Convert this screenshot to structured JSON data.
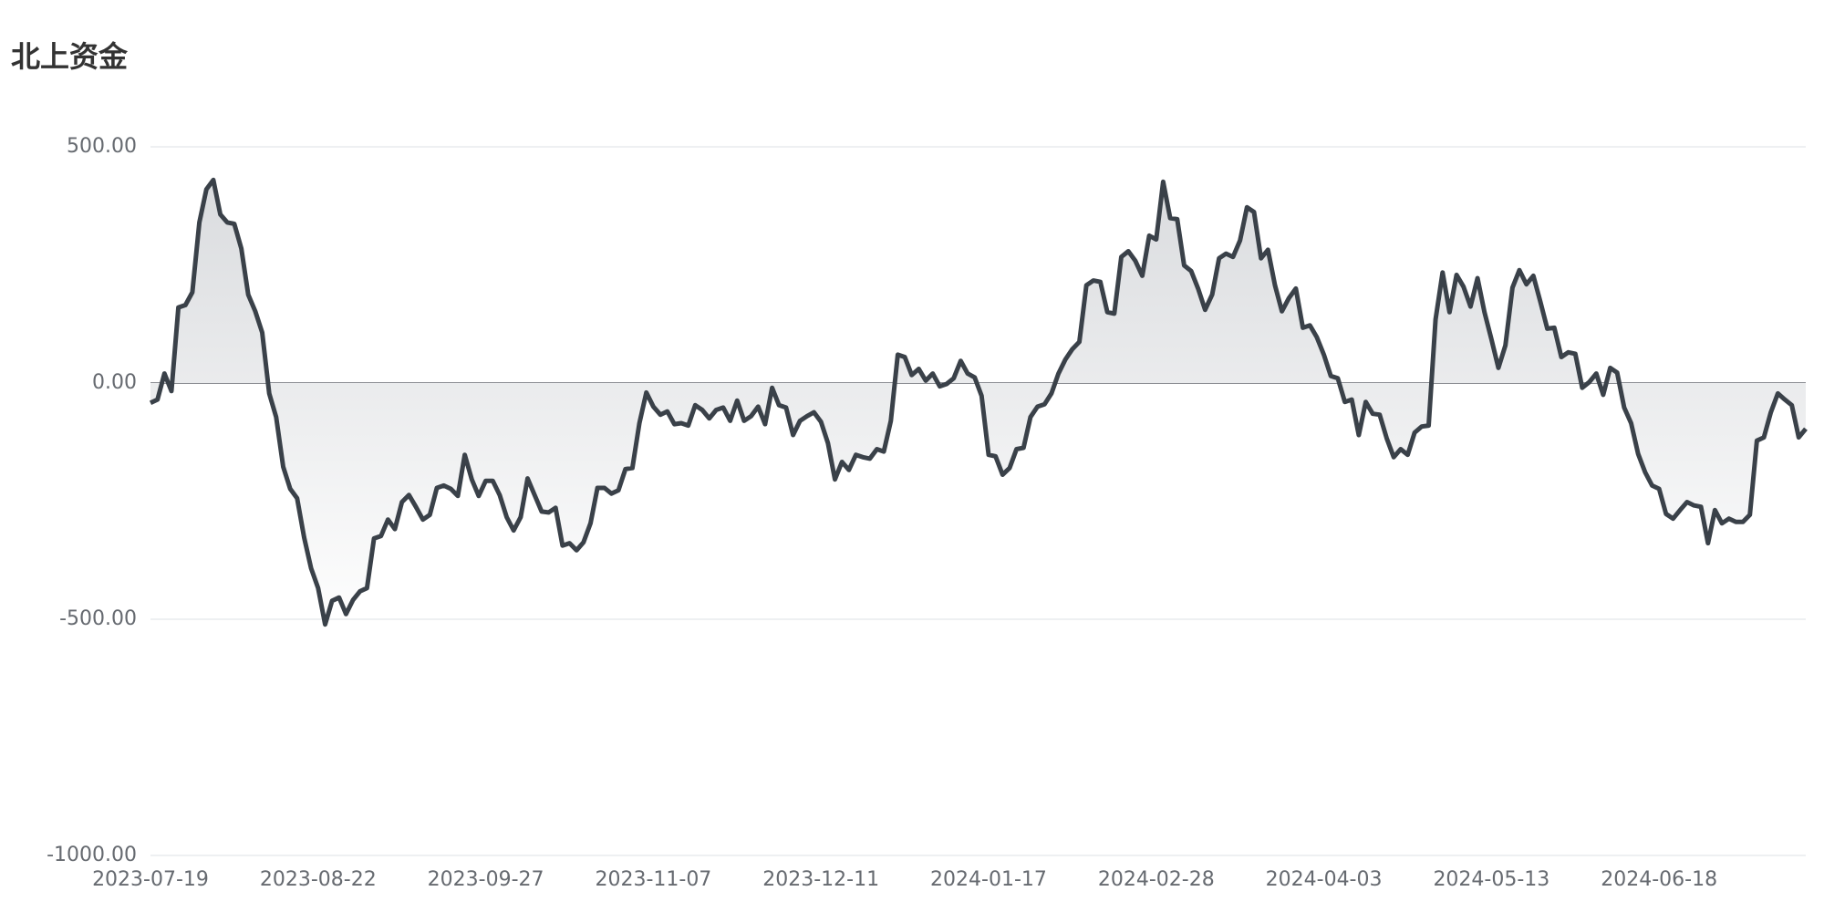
{
  "chart_data": {
    "type": "line",
    "title": "北上资金",
    "categories": [
      "2023-07-19",
      null,
      null,
      null,
      null,
      null,
      null,
      null,
      null,
      null,
      null,
      null,
      null,
      null,
      null,
      null,
      null,
      null,
      null,
      null,
      null,
      null,
      null,
      null,
      "2023-08-22",
      null,
      null,
      null,
      null,
      null,
      null,
      null,
      null,
      null,
      null,
      null,
      null,
      null,
      null,
      null,
      null,
      null,
      null,
      null,
      null,
      null,
      null,
      null,
      "2023-09-27",
      null,
      null,
      null,
      null,
      null,
      null,
      null,
      null,
      null,
      null,
      null,
      null,
      null,
      null,
      null,
      null,
      null,
      null,
      null,
      null,
      null,
      null,
      null,
      "2023-11-07",
      null,
      null,
      null,
      null,
      null,
      null,
      null,
      null,
      null,
      null,
      null,
      null,
      null,
      null,
      null,
      null,
      null,
      null,
      null,
      null,
      null,
      null,
      null,
      "2023-12-11",
      null,
      null,
      null,
      null,
      null,
      null,
      null,
      null,
      null,
      null,
      null,
      null,
      null,
      null,
      null,
      null,
      null,
      null,
      null,
      null,
      null,
      null,
      null,
      "2024-01-17",
      null,
      null,
      null,
      null,
      null,
      null,
      null,
      null,
      null,
      null,
      null,
      null,
      null,
      null,
      null,
      null,
      null,
      null,
      null,
      null,
      null,
      null,
      null,
      "2024-02-28",
      null,
      null,
      null,
      null,
      null,
      null,
      null,
      null,
      null,
      null,
      null,
      null,
      null,
      null,
      null,
      null,
      null,
      null,
      null,
      null,
      null,
      null,
      null,
      "2024-04-03",
      null,
      null,
      null,
      null,
      null,
      null,
      null,
      null,
      null,
      null,
      null,
      null,
      null,
      null,
      null,
      null,
      null,
      null,
      null,
      null,
      null,
      null,
      null,
      "2024-05-13",
      null,
      null,
      null,
      null,
      null,
      null,
      null,
      null,
      null,
      null,
      null,
      null,
      null,
      null,
      null,
      null,
      null,
      null,
      null,
      null,
      null,
      null,
      null,
      "2024-06-18",
      null,
      null,
      null,
      null,
      null,
      null,
      null,
      null,
      null,
      null,
      null,
      null,
      null,
      null,
      null,
      null,
      null,
      null,
      null,
      null,
      null
    ],
    "values": [
      -42,
      -35,
      20,
      -17,
      160,
      165,
      192,
      340,
      410,
      430,
      357,
      340,
      337,
      285,
      187,
      152,
      107,
      -22,
      -72,
      -177,
      -224,
      -244,
      -327,
      -392,
      -434,
      -511,
      -461,
      -454,
      -489,
      -459,
      -441,
      -434,
      -329,
      -324,
      -289,
      -309,
      -252,
      -237,
      -262,
      -289,
      -279,
      -222,
      -217,
      -224,
      -239,
      -152,
      -204,
      -239,
      -207,
      -207,
      -237,
      -284,
      -312,
      -284,
      -202,
      -237,
      -272,
      -274,
      -264,
      -344,
      -339,
      -354,
      -337,
      -297,
      -222,
      -222,
      -234,
      -227,
      -182,
      -180,
      -85,
      -20,
      -50,
      -67,
      -60,
      -87,
      -85,
      -90,
      -47,
      -57,
      -75,
      -57,
      -52,
      -80,
      -37,
      -80,
      -70,
      -50,
      -87,
      -10,
      -47,
      -52,
      -110,
      -80,
      -70,
      -62,
      -82,
      -127,
      -204,
      -167,
      -184,
      -152,
      -157,
      -160,
      -140,
      -145,
      -80,
      60,
      55,
      17,
      30,
      5,
      20,
      -7,
      -2,
      10,
      47,
      20,
      12,
      -27,
      -152,
      -155,
      -194,
      -180,
      -140,
      -137,
      -72,
      -50,
      -45,
      -22,
      20,
      50,
      72,
      87,
      207,
      217,
      214,
      150,
      147,
      267,
      279,
      259,
      227,
      312,
      304,
      426,
      349,
      347,
      249,
      237,
      200,
      155,
      187,
      264,
      274,
      267,
      302,
      372,
      362,
      264,
      282,
      207,
      152,
      180,
      200,
      117,
      122,
      97,
      60,
      15,
      10,
      -40,
      -35,
      -110,
      -40,
      -65,
      -67,
      -117,
      -157,
      -140,
      -152,
      -105,
      -92,
      -90,
      135,
      234,
      150,
      229,
      204,
      162,
      222,
      150,
      92,
      32,
      80,
      202,
      239,
      209,
      227,
      172,
      115,
      117,
      55,
      65,
      62,
      -10,
      2,
      20,
      -25,
      32,
      22,
      -52,
      -85,
      -150,
      -189,
      -217,
      -224,
      -277,
      -287,
      -269,
      -252,
      -259,
      -262,
      -339,
      -269,
      -297,
      -287,
      -294,
      -294,
      -279,
      -122,
      -115,
      -62,
      -22,
      -35,
      -47,
      -115,
      -97
    ],
    "color": "#3a4149",
    "ylim": [
      -1000,
      500
    ],
    "yticks": [
      {
        "value": -1000,
        "label": "-1000.00"
      },
      {
        "value": -500,
        "label": "-500.00"
      },
      {
        "value": 0,
        "label": "0.00"
      },
      {
        "value": 500,
        "label": "500.00"
      }
    ],
    "grid": true
  }
}
